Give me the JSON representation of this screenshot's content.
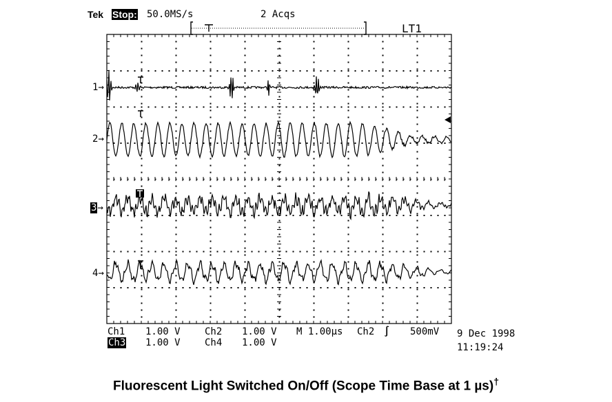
{
  "header": {
    "brand": "Tek",
    "run_state": "Stop:",
    "sample_rate": "50.0MS/s",
    "acquisitions": "2 Acqs",
    "trigger_label": "LT1"
  },
  "channels": [
    {
      "id": "1",
      "highlighted": false
    },
    {
      "id": "2",
      "highlighted": false
    },
    {
      "id": "3",
      "highlighted": true
    },
    {
      "id": "4",
      "highlighted": false
    }
  ],
  "readout": {
    "ch1_label": "Ch1",
    "ch1_scale": "1.00 V",
    "ch2_label": "Ch2",
    "ch2_scale": "1.00 V",
    "ch3_label": "Ch3",
    "ch3_scale": "1.00 V",
    "ch4_label": "Ch4",
    "ch4_scale": "1.00 V",
    "timebase": "M 1.00µs",
    "trigger_source": "Ch2",
    "trigger_slope": "∫",
    "trigger_level": "500mV",
    "date": "9 Dec 1998",
    "time": "11:19:24"
  },
  "caption": {
    "text": "Fluorescent Light Switched On/Off (Scope Time Base at 1 µs)",
    "mark": "†"
  },
  "colors": {
    "trace": "#000000",
    "grid": "#000000",
    "background": "#ffffff"
  }
}
